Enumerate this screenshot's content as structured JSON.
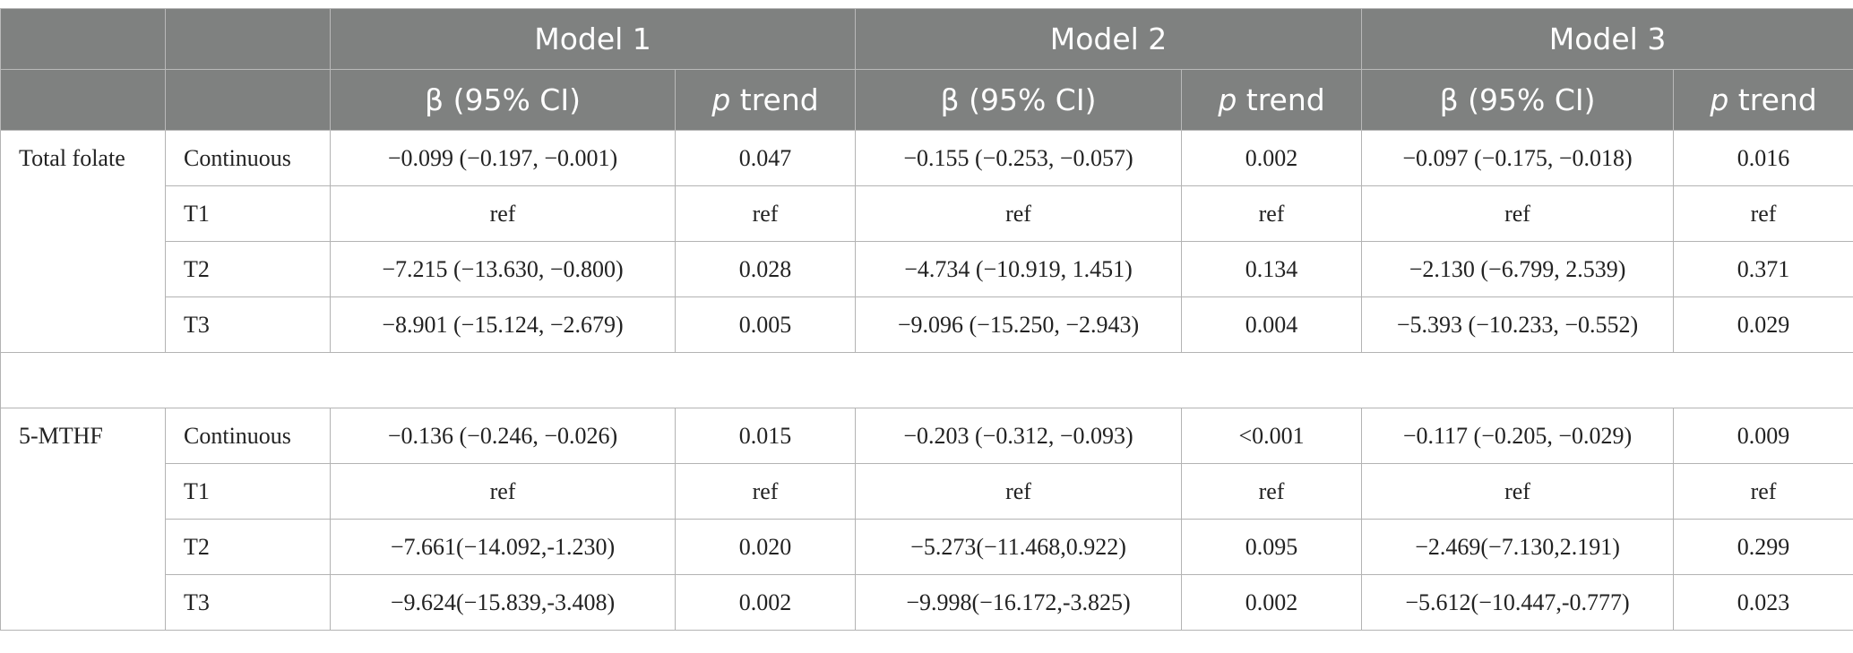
{
  "header": {
    "models": [
      "Model 1",
      "Model 2",
      "Model 3"
    ],
    "beta_label": "β (95% CI)",
    "p_italic": "p",
    "trend_label": " trend"
  },
  "groups": [
    {
      "name": "Total folate",
      "rows": [
        {
          "level": "Continuous",
          "m1_beta": "−0.099 (−0.197, −0.001)",
          "m1_p": "0.047",
          "m2_beta": "−0.155 (−0.253, −0.057)",
          "m2_p": "0.002",
          "m3_beta": "−0.097 (−0.175, −0.018)",
          "m3_p": "0.016"
        },
        {
          "level": "T1",
          "m1_beta": "ref",
          "m1_p": "ref",
          "m2_beta": "ref",
          "m2_p": "ref",
          "m3_beta": "ref",
          "m3_p": "ref"
        },
        {
          "level": "T2",
          "m1_beta": "−7.215 (−13.630, −0.800)",
          "m1_p": "0.028",
          "m2_beta": "−4.734 (−10.919, 1.451)",
          "m2_p": "0.134",
          "m3_beta": "−2.130 (−6.799, 2.539)",
          "m3_p": "0.371"
        },
        {
          "level": "T3",
          "m1_beta": "−8.901 (−15.124, −2.679)",
          "m1_p": "0.005",
          "m2_beta": "−9.096 (−15.250, −2.943)",
          "m2_p": "0.004",
          "m3_beta": "−5.393 (−10.233, −0.552)",
          "m3_p": "0.029"
        }
      ]
    },
    {
      "name": "5-MTHF",
      "rows": [
        {
          "level": "Continuous",
          "m1_beta": "−0.136 (−0.246, −0.026)",
          "m1_p": "0.015",
          "m2_beta": "−0.203 (−0.312, −0.093)",
          "m2_p": "<0.001",
          "m3_beta": "−0.117 (−0.205, −0.029)",
          "m3_p": "0.009"
        },
        {
          "level": "T1",
          "m1_beta": "ref",
          "m1_p": "ref",
          "m2_beta": "ref",
          "m2_p": "ref",
          "m3_beta": "ref",
          "m3_p": "ref"
        },
        {
          "level": "T2",
          "m1_beta": "−7.661(−14.092,-1.230)",
          "m1_p": "0.020",
          "m2_beta": "−5.273(−11.468,0.922)",
          "m2_p": "0.095",
          "m3_beta": "−2.469(−7.130,2.191)",
          "m3_p": "0.299"
        },
        {
          "level": "T3",
          "m1_beta": "−9.624(−15.839,-3.408)",
          "m1_p": "0.002",
          "m2_beta": "−9.998(−16.172,-3.825)",
          "m2_p": "0.002",
          "m3_beta": "−5.612(−10.447,-0.777)",
          "m3_p": "0.023"
        }
      ]
    }
  ]
}
